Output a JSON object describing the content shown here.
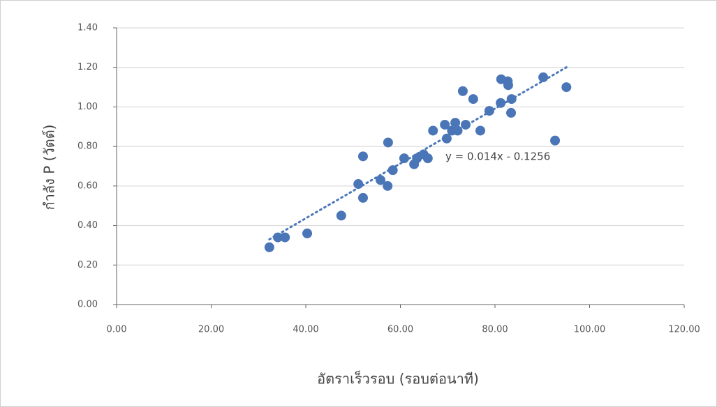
{
  "chart_data": {
    "type": "scatter",
    "x_label": "อัตราเร็วรอบ (รอบต่อนาที)",
    "y_label": "กำลัง P (วัตต์)",
    "annotation": "y = 0.014x - 0.1256",
    "color": "#4a76b8",
    "grid": true,
    "trendline": true,
    "x": [
      32.3,
      34.1,
      35.6,
      40.3,
      47.5,
      51.1,
      52.1,
      52.1,
      55.8,
      57.3,
      57.4,
      58.4,
      60.8,
      62.9,
      63.5,
      64.9,
      65.8,
      66.9,
      69.4,
      69.8,
      70.9,
      71.6,
      72.1,
      73.2,
      73.8,
      75.4,
      76.9,
      78.8,
      81.2,
      81.3,
      82.7,
      82.8,
      83.5,
      83.4,
      90.2,
      92.7,
      95.1
    ],
    "values": [
      0.29,
      0.34,
      0.34,
      0.36,
      0.45,
      0.61,
      0.75,
      0.54,
      0.63,
      0.6,
      0.82,
      0.68,
      0.74,
      0.71,
      0.74,
      0.76,
      0.74,
      0.88,
      0.91,
      0.84,
      0.88,
      0.92,
      0.88,
      1.08,
      0.91,
      1.04,
      0.88,
      0.98,
      1.02,
      1.14,
      1.13,
      1.11,
      1.04,
      0.97,
      1.15,
      0.83,
      1.1
    ],
    "xlim": [
      0,
      120
    ],
    "ylim": [
      0,
      1.4
    ],
    "xticks": [
      {
        "value": 0,
        "label": "0.00"
      },
      {
        "value": 20,
        "label": "20.00"
      },
      {
        "value": 40,
        "label": "40.00"
      },
      {
        "value": 60,
        "label": "60.00"
      },
      {
        "value": 80,
        "label": "80.00"
      },
      {
        "value": 100,
        "label": "100.00"
      },
      {
        "value": 120,
        "label": "120.00"
      }
    ],
    "yticks": [
      {
        "value": 0,
        "label": "0.00"
      },
      {
        "value": 0.2,
        "label": "0.20"
      },
      {
        "value": 0.4,
        "label": "0.40"
      },
      {
        "value": 0.6,
        "label": "0.60"
      },
      {
        "value": 0.8,
        "label": "0.80"
      },
      {
        "value": 1.0,
        "label": "1.00"
      },
      {
        "value": 1.2,
        "label": "1.20"
      },
      {
        "value": 1.4,
        "label": "1.40"
      }
    ]
  }
}
